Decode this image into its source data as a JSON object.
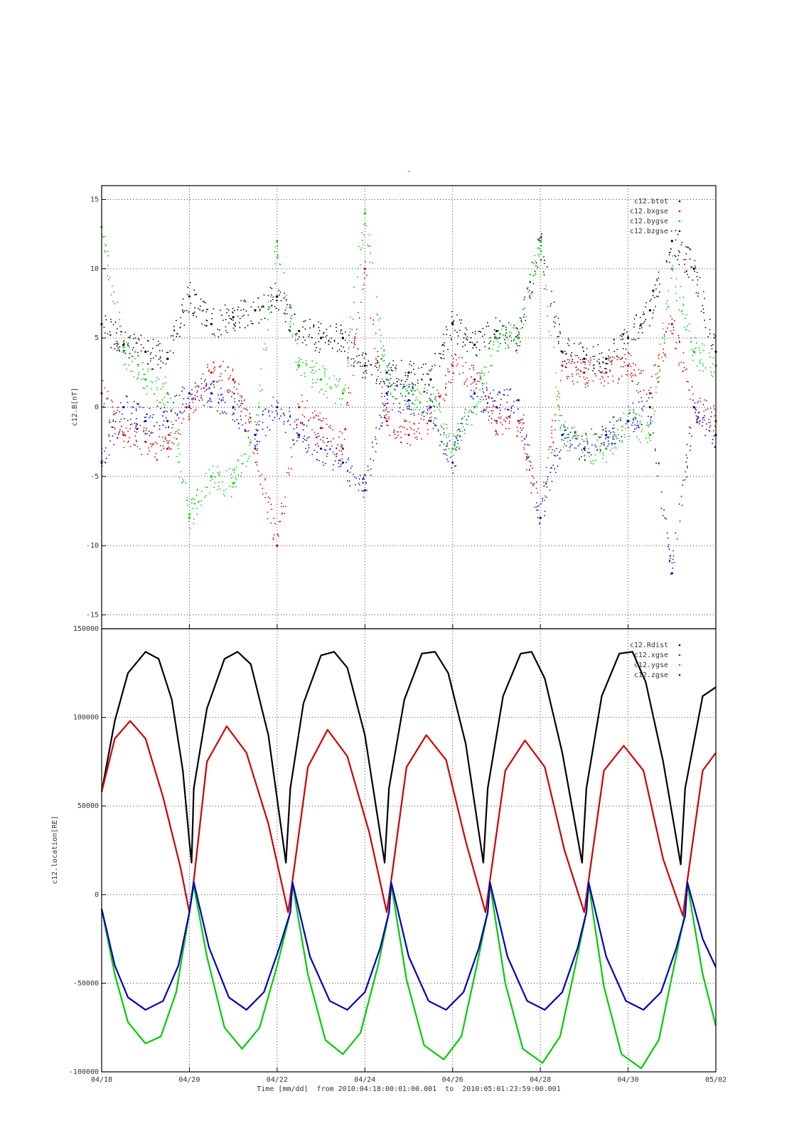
{
  "figure": {
    "title": "-",
    "xlabel": "Time [mm/dd]  from 2010:04:18:00:01:00.001  to  2010:05:01:23:59:00.001",
    "x_ticks": [
      "04/18",
      "04/20",
      "04/22",
      "04/24",
      "04/26",
      "04/28",
      "04/30",
      "05/02"
    ],
    "colors": {
      "black": "#000000",
      "red": "#cc0000",
      "green": "#00cc00",
      "blue": "#0000bb"
    }
  },
  "chart_data": [
    {
      "type": "scatter",
      "title": "",
      "ylabel": "c12.B[nT]",
      "xlim": [
        "04/18",
        "05/02"
      ],
      "ylim": [
        -16,
        16
      ],
      "y_ticks": [
        "15",
        "10",
        "5",
        "0",
        "-5",
        "-10",
        "-15"
      ],
      "grid": true,
      "legend_position": "top-right",
      "x_days": [
        0,
        0.5,
        1,
        1.5,
        2,
        2.5,
        3,
        3.5,
        4,
        4.5,
        5,
        5.5,
        6,
        6.5,
        7,
        7.5,
        8,
        8.5,
        9,
        9.5,
        10,
        10.5,
        11,
        11.5,
        12,
        12.5,
        13,
        13.5,
        14
      ],
      "series": [
        {
          "name": "c12.btot",
          "color": "#000000",
          "values": [
            6,
            4.5,
            4,
            3.5,
            8,
            6,
            6.5,
            7,
            8,
            5.5,
            5,
            5,
            3,
            2.5,
            2.5,
            2,
            6,
            4.5,
            5.5,
            5,
            12,
            4,
            3.5,
            3.5,
            5,
            7,
            12,
            10,
            4
          ]
        },
        {
          "name": "c12.bxgse",
          "color": "#cc0000",
          "values": [
            1,
            -2,
            -2.5,
            -3,
            0,
            2.5,
            2,
            -3,
            -10,
            0,
            -1.5,
            -3,
            10,
            -1,
            -2,
            -1,
            3,
            2,
            -1,
            -1,
            -8,
            3,
            2.5,
            2.5,
            3,
            1,
            6,
            0,
            -1
          ]
        },
        {
          "name": "c12.bygse",
          "color": "#00cc00",
          "values": [
            13,
            4,
            2,
            1,
            -8,
            -5,
            -5.5,
            -2,
            12,
            3,
            2,
            1,
            14,
            2,
            1,
            0.5,
            -3,
            0,
            5,
            5,
            12,
            -2,
            -3,
            -3,
            -1,
            -2,
            10,
            4,
            3
          ]
        },
        {
          "name": "c12.bzgse",
          "color": "#0000bb",
          "values": [
            -4,
            0,
            -1,
            -1,
            1,
            1,
            0,
            -2,
            0,
            -2,
            -3,
            -4,
            -6,
            1,
            0.5,
            0,
            -4,
            1,
            0,
            0.5,
            -8,
            -2,
            -3,
            -2,
            -1,
            0,
            -12,
            0,
            -2
          ]
        }
      ]
    },
    {
      "type": "line",
      "title": "",
      "ylabel": "c12.location[RE]",
      "xlim": [
        "04/18",
        "05/02"
      ],
      "ylim": [
        -100000,
        150000
      ],
      "y_ticks": [
        "150000",
        "100000",
        "50000",
        "0",
        "-50000",
        "-100000"
      ],
      "grid": true,
      "legend_position": "top-right",
      "series": [
        {
          "name": "c12.Rdist",
          "color": "#000000",
          "points": [
            [
              0,
              58000
            ],
            [
              0.3,
              98000
            ],
            [
              0.6,
              125000
            ],
            [
              1.0,
              137000
            ],
            [
              1.3,
              133000
            ],
            [
              1.6,
              110000
            ],
            [
              1.85,
              70000
            ],
            [
              2.0,
              30000
            ],
            [
              2.05,
              18000
            ],
            [
              2.1,
              60000
            ],
            [
              2.4,
              105000
            ],
            [
              2.8,
              133000
            ],
            [
              3.1,
              137000
            ],
            [
              3.4,
              130000
            ],
            [
              3.8,
              90000
            ],
            [
              4.2,
              18000
            ],
            [
              4.3,
              60000
            ],
            [
              4.6,
              108000
            ],
            [
              5.0,
              135000
            ],
            [
              5.3,
              137000
            ],
            [
              5.6,
              128000
            ],
            [
              6.0,
              90000
            ],
            [
              6.45,
              18000
            ],
            [
              6.55,
              60000
            ],
            [
              6.9,
              110000
            ],
            [
              7.3,
              136000
            ],
            [
              7.6,
              137000
            ],
            [
              7.9,
              125000
            ],
            [
              8.3,
              85000
            ],
            [
              8.7,
              18000
            ],
            [
              8.8,
              60000
            ],
            [
              9.15,
              112000
            ],
            [
              9.55,
              136000
            ],
            [
              9.8,
              137000
            ],
            [
              10.1,
              122000
            ],
            [
              10.5,
              80000
            ],
            [
              10.95,
              18000
            ],
            [
              11.05,
              60000
            ],
            [
              11.4,
              112000
            ],
            [
              11.8,
              136000
            ],
            [
              12.1,
              137000
            ],
            [
              12.4,
              120000
            ],
            [
              12.8,
              75000
            ],
            [
              13.2,
              17000
            ],
            [
              13.3,
              60000
            ],
            [
              13.7,
              112000
            ],
            [
              14.0,
              117000
            ]
          ]
        },
        {
          "name": "c12.xgse",
          "color": "#cc0000",
          "points": [
            [
              0,
              58000
            ],
            [
              0.3,
              88000
            ],
            [
              0.65,
              98000
            ],
            [
              1.0,
              88000
            ],
            [
              1.4,
              55000
            ],
            [
              1.8,
              15000
            ],
            [
              2.0,
              -10000
            ],
            [
              2.1,
              8000
            ],
            [
              2.4,
              75000
            ],
            [
              2.85,
              95000
            ],
            [
              3.3,
              80000
            ],
            [
              3.8,
              40000
            ],
            [
              4.25,
              -10000
            ],
            [
              4.35,
              8000
            ],
            [
              4.7,
              72000
            ],
            [
              5.15,
              93000
            ],
            [
              5.6,
              78000
            ],
            [
              6.1,
              35000
            ],
            [
              6.5,
              -10000
            ],
            [
              6.6,
              8000
            ],
            [
              6.95,
              72000
            ],
            [
              7.4,
              90000
            ],
            [
              7.85,
              76000
            ],
            [
              8.3,
              30000
            ],
            [
              8.75,
              -10000
            ],
            [
              8.85,
              8000
            ],
            [
              9.2,
              70000
            ],
            [
              9.65,
              87000
            ],
            [
              10.1,
              72000
            ],
            [
              10.55,
              25000
            ],
            [
              11.0,
              -10000
            ],
            [
              11.1,
              8000
            ],
            [
              11.45,
              70000
            ],
            [
              11.9,
              84000
            ],
            [
              12.35,
              70000
            ],
            [
              12.8,
              20000
            ],
            [
              13.25,
              -12000
            ],
            [
              13.35,
              8000
            ],
            [
              13.7,
              70000
            ],
            [
              14.0,
              80000
            ]
          ]
        },
        {
          "name": "c12.ygse",
          "color": "#00cc00",
          "points": [
            [
              0,
              -8000
            ],
            [
              0.3,
              -45000
            ],
            [
              0.6,
              -72000
            ],
            [
              1.0,
              -84000
            ],
            [
              1.35,
              -80000
            ],
            [
              1.7,
              -55000
            ],
            [
              2.0,
              -10000
            ],
            [
              2.1,
              5000
            ],
            [
              2.4,
              -35000
            ],
            [
              2.8,
              -75000
            ],
            [
              3.2,
              -87000
            ],
            [
              3.6,
              -75000
            ],
            [
              4.0,
              -40000
            ],
            [
              4.3,
              -10000
            ],
            [
              4.35,
              6000
            ],
            [
              4.7,
              -45000
            ],
            [
              5.1,
              -82000
            ],
            [
              5.5,
              -90000
            ],
            [
              5.9,
              -78000
            ],
            [
              6.3,
              -40000
            ],
            [
              6.55,
              -10000
            ],
            [
              6.6,
              6000
            ],
            [
              6.95,
              -48000
            ],
            [
              7.35,
              -85000
            ],
            [
              7.8,
              -93000
            ],
            [
              8.2,
              -80000
            ],
            [
              8.55,
              -40000
            ],
            [
              8.8,
              -10000
            ],
            [
              8.85,
              6000
            ],
            [
              9.2,
              -50000
            ],
            [
              9.6,
              -87000
            ],
            [
              10.05,
              -95000
            ],
            [
              10.45,
              -80000
            ],
            [
              10.8,
              -40000
            ],
            [
              11.05,
              -10000
            ],
            [
              11.1,
              6000
            ],
            [
              11.45,
              -52000
            ],
            [
              11.85,
              -90000
            ],
            [
              12.3,
              -98000
            ],
            [
              12.7,
              -82000
            ],
            [
              13.05,
              -40000
            ],
            [
              13.3,
              -10000
            ],
            [
              13.35,
              6000
            ],
            [
              13.7,
              -45000
            ],
            [
              14.0,
              -74000
            ]
          ]
        },
        {
          "name": "c12.zgse",
          "color": "#0000bb",
          "points": [
            [
              0,
              -8000
            ],
            [
              0.3,
              -40000
            ],
            [
              0.6,
              -58000
            ],
            [
              1.0,
              -65000
            ],
            [
              1.4,
              -60000
            ],
            [
              1.75,
              -40000
            ],
            [
              2.0,
              -10000
            ],
            [
              2.1,
              7000
            ],
            [
              2.45,
              -30000
            ],
            [
              2.9,
              -58000
            ],
            [
              3.3,
              -65000
            ],
            [
              3.7,
              -55000
            ],
            [
              4.05,
              -30000
            ],
            [
              4.3,
              -10000
            ],
            [
              4.35,
              7000
            ],
            [
              4.75,
              -35000
            ],
            [
              5.2,
              -60000
            ],
            [
              5.6,
              -65000
            ],
            [
              6.0,
              -55000
            ],
            [
              6.35,
              -30000
            ],
            [
              6.55,
              -10000
            ],
            [
              6.6,
              7000
            ],
            [
              7.0,
              -35000
            ],
            [
              7.45,
              -60000
            ],
            [
              7.85,
              -65000
            ],
            [
              8.25,
              -55000
            ],
            [
              8.6,
              -30000
            ],
            [
              8.8,
              -10000
            ],
            [
              8.85,
              7000
            ],
            [
              9.25,
              -35000
            ],
            [
              9.7,
              -60000
            ],
            [
              10.1,
              -65000
            ],
            [
              10.5,
              -55000
            ],
            [
              10.85,
              -30000
            ],
            [
              11.05,
              -10000
            ],
            [
              11.1,
              7000
            ],
            [
              11.5,
              -35000
            ],
            [
              11.95,
              -60000
            ],
            [
              12.35,
              -65000
            ],
            [
              12.75,
              -55000
            ],
            [
              13.1,
              -30000
            ],
            [
              13.3,
              -12000
            ],
            [
              13.35,
              7000
            ],
            [
              13.7,
              -25000
            ],
            [
              14.0,
              -41000
            ]
          ]
        }
      ]
    }
  ]
}
